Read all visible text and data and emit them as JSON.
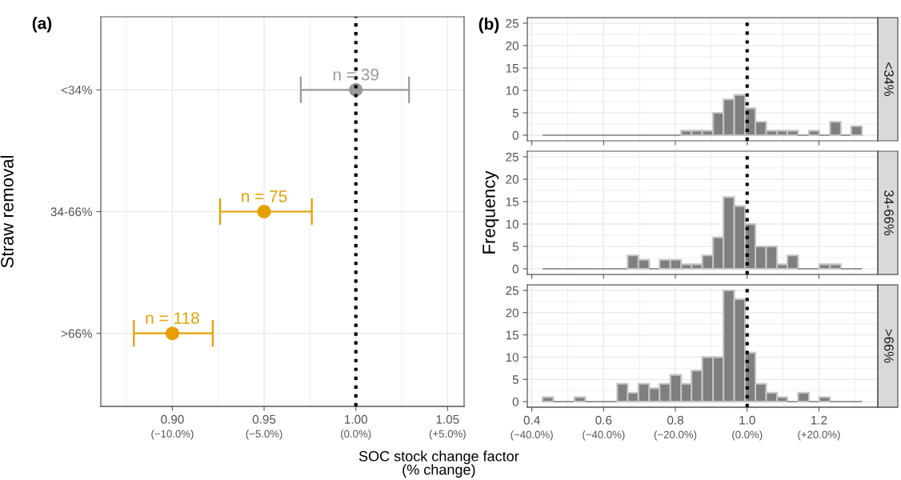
{
  "chart_data": [
    {
      "type": "scatter",
      "orientation": "horizontal",
      "title": "(a)",
      "ylabel": "Straw removal",
      "categories": [
        "<34%",
        "34-66%",
        ">66%"
      ],
      "values": [
        1.0,
        0.95,
        0.9
      ],
      "errors": [
        [
          0.97,
          1.029
        ],
        [
          0.926,
          0.976
        ],
        [
          0.879,
          0.922
        ]
      ],
      "colors": [
        "#999999",
        "#e69f00",
        "#e69f00"
      ],
      "marker": "circle",
      "annotations": [
        {
          "text": "n = 39",
          "x": 1.0,
          "y": "<34%"
        },
        {
          "text": "n = 75",
          "x": 0.95,
          "y": "34-66%"
        },
        {
          "text": "n = 118",
          "x": 0.9,
          "y": ">66%"
        },
        "(−10.0%)",
        "(−5.0%)",
        "(0.0%)",
        "(+5.0%)"
      ],
      "xlim": [
        0.861,
        1.059
      ],
      "xticks": [
        {
          "value": 0.9,
          "label": "0.90"
        },
        {
          "value": 0.95,
          "label": "0.95"
        },
        {
          "value": 1.0,
          "label": "1.00"
        },
        {
          "value": 1.05,
          "label": "1.05"
        }
      ],
      "ref_lines": [
        {
          "axis": "x",
          "value": 1.0,
          "color": "#000000",
          "line_style": "dotted"
        }
      ],
      "grid": true
    },
    {
      "type": "histogram",
      "title": "(b)",
      "subtitle": "<34%",
      "color": "#7f7f7f",
      "bins": [
        0.43,
        0.46,
        0.489,
        0.519,
        0.549,
        0.578,
        0.608,
        0.638,
        0.667,
        0.697,
        0.727,
        0.756,
        0.786,
        0.816,
        0.845,
        0.875,
        0.905,
        0.934,
        0.964,
        0.994,
        1.023,
        1.053,
        1.083,
        1.112,
        1.142,
        1.172,
        1.201,
        1.231,
        1.261,
        1.29,
        1.32
      ],
      "values": [
        0,
        0,
        0,
        0,
        0,
        0,
        0,
        0,
        0,
        0,
        0,
        0,
        0,
        1,
        1,
        1,
        5,
        8,
        9,
        6,
        3,
        1,
        1,
        1,
        0,
        1,
        0,
        3,
        0,
        2
      ],
      "xlim": [
        0.3875,
        1.364
      ],
      "ylim": [
        -1.25,
        26.25
      ],
      "yticks": [
        0,
        5,
        10,
        15,
        20,
        25
      ],
      "xticks": [
        0.4,
        0.6,
        0.8,
        1.0,
        1.2
      ],
      "tick_labels": "y",
      "ref_lines": [
        {
          "axis": "x",
          "value": 1.0,
          "color": "#000000",
          "line_style": "dotted"
        }
      ],
      "grid": true
    },
    {
      "type": "histogram",
      "subtitle": "34-66%",
      "ylabel": "Frequency",
      "color": "#7f7f7f",
      "bins": [
        0.43,
        0.46,
        0.489,
        0.519,
        0.549,
        0.578,
        0.608,
        0.638,
        0.667,
        0.697,
        0.727,
        0.756,
        0.786,
        0.816,
        0.845,
        0.875,
        0.905,
        0.934,
        0.964,
        0.994,
        1.023,
        1.053,
        1.083,
        1.112,
        1.142,
        1.172,
        1.201,
        1.231,
        1.261,
        1.29,
        1.32
      ],
      "values": [
        0,
        0,
        0,
        0,
        0,
        0,
        0,
        0,
        3,
        2,
        0,
        2,
        2,
        1,
        1,
        3,
        7,
        16,
        14,
        10,
        5,
        5,
        1,
        3,
        0,
        0,
        1,
        1,
        0,
        0
      ],
      "xlim": [
        0.3875,
        1.364
      ],
      "ylim": [
        -1.25,
        26.25
      ],
      "yticks": [
        0,
        5,
        10,
        15,
        20,
        25
      ],
      "xticks": [
        0.4,
        0.6,
        0.8,
        1.0,
        1.2
      ],
      "tick_labels": "y",
      "ref_lines": [
        {
          "axis": "x",
          "value": 1.0,
          "color": "#000000",
          "line_style": "dotted"
        }
      ],
      "grid": true
    },
    {
      "type": "histogram",
      "subtitle": ">66%",
      "xlabel": "SOC stock change factor\n(% change)",
      "color": "#7f7f7f",
      "bins": [
        0.43,
        0.46,
        0.489,
        0.519,
        0.549,
        0.578,
        0.608,
        0.638,
        0.667,
        0.697,
        0.727,
        0.756,
        0.786,
        0.816,
        0.845,
        0.875,
        0.905,
        0.934,
        0.964,
        0.994,
        1.023,
        1.053,
        1.083,
        1.112,
        1.142,
        1.172,
        1.201,
        1.231,
        1.261,
        1.29,
        1.32
      ],
      "values": [
        1,
        0,
        0,
        1,
        0,
        0,
        0,
        4,
        2,
        4,
        3,
        4,
        6,
        4,
        7,
        10,
        10,
        25,
        23,
        11,
        4,
        2,
        1,
        0,
        2,
        0,
        1,
        0,
        0,
        0
      ],
      "xlim": [
        0.3875,
        1.364
      ],
      "ylim": [
        -1.25,
        26.25
      ],
      "yticks": [
        0,
        5,
        10,
        15,
        20,
        25
      ],
      "xticks": [
        {
          "value": 0.4,
          "label": "0.4"
        },
        {
          "value": 0.6,
          "label": "0.6"
        },
        {
          "value": 0.8,
          "label": "0.8"
        },
        {
          "value": 1.0,
          "label": "1.0"
        },
        {
          "value": 1.2,
          "label": "1.2"
        }
      ],
      "annotations": [
        "(−40.0%)",
        "(−40.0%)",
        "(−20.0%)",
        "(0.0%)",
        "(+20.0%)"
      ],
      "ref_lines": [
        {
          "axis": "x",
          "value": 1.0,
          "color": "#000000",
          "line_style": "dotted"
        }
      ],
      "grid": true
    }
  ]
}
